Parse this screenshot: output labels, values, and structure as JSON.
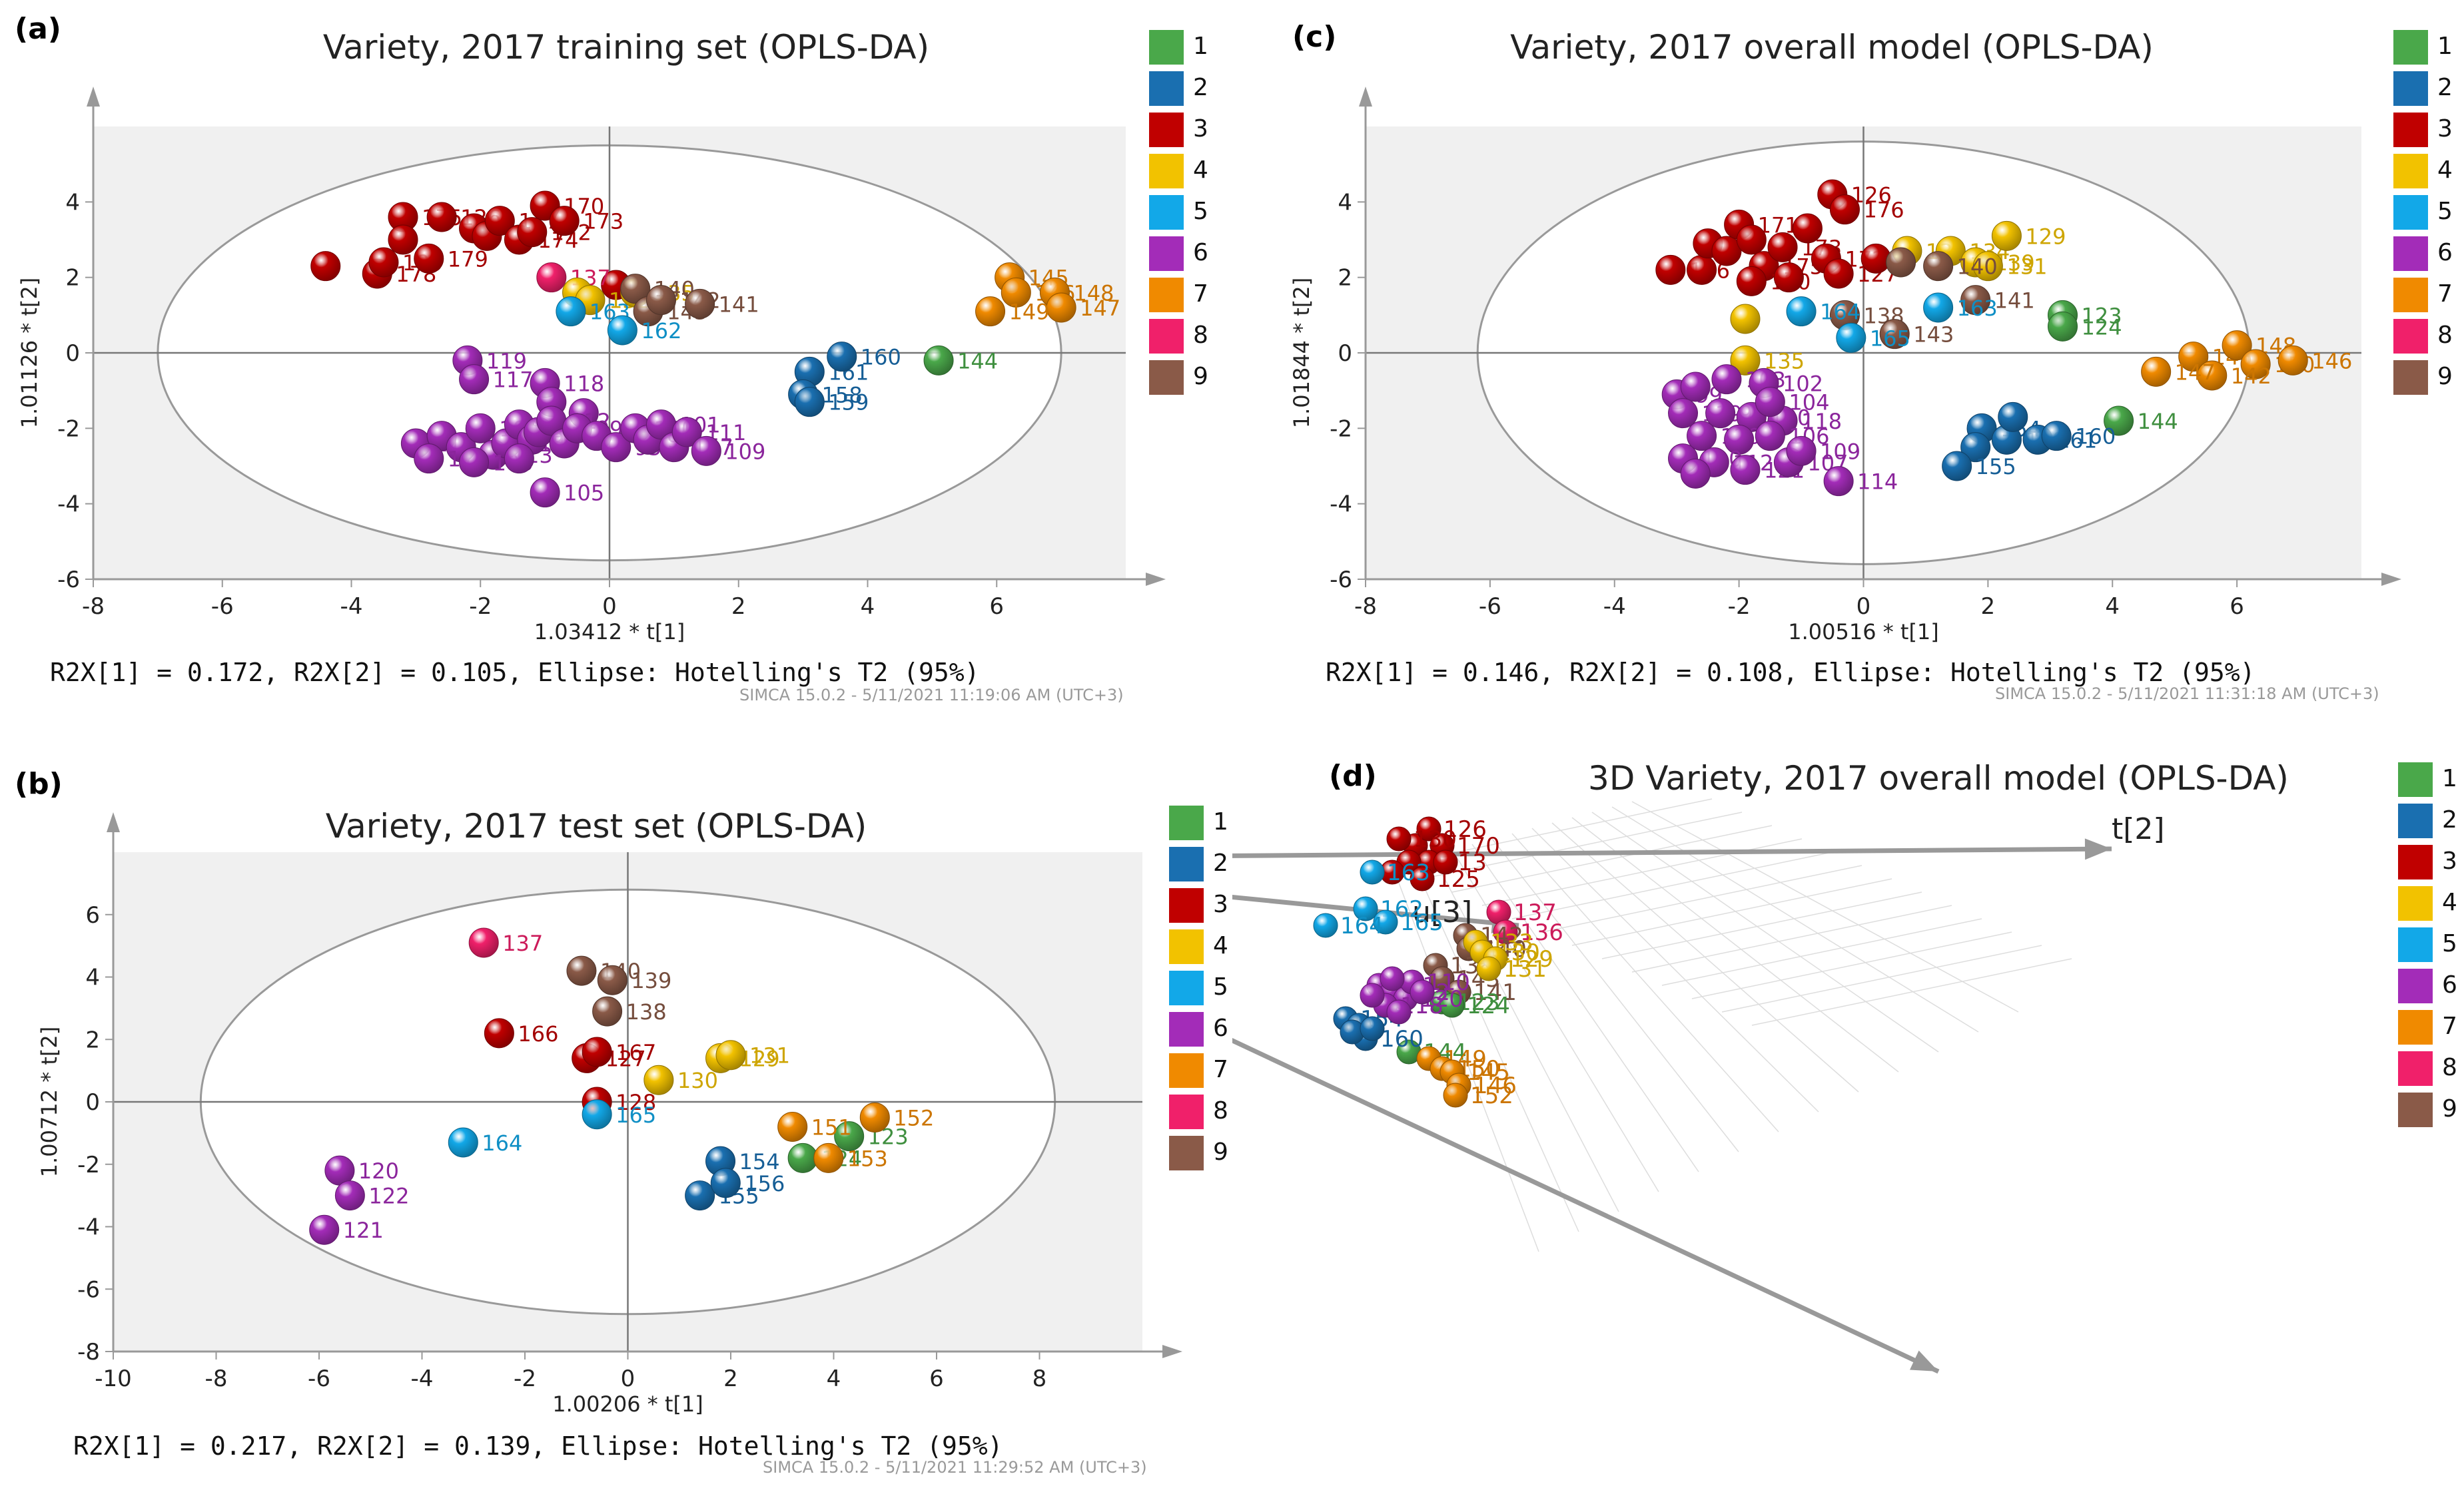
{
  "colors": {
    "1": "#4aa84a",
    "2": "#1a6fb0",
    "3": "#c00000",
    "4": "#f2c200",
    "5": "#12a8e8",
    "6": "#a32cb8",
    "7": "#f08a00",
    "8": "#f0206a",
    "9": "#8a5a48"
  },
  "legend_labels": [
    "1",
    "2",
    "3",
    "4",
    "5",
    "6",
    "7",
    "8",
    "9"
  ],
  "chart_data": [
    {
      "panel": "(a)",
      "type": "scatter",
      "title": "Variety, 2017 training set (OPLS-DA)",
      "xlabel": "1.03412 * t[1]",
      "ylabel": "1.01126 * t[2]",
      "xlim": [
        -8,
        8
      ],
      "ylim": [
        -6,
        6
      ],
      "xticks": [
        -8,
        -6,
        -4,
        -2,
        0,
        2,
        4,
        6
      ],
      "yticks": [
        -6,
        -4,
        -2,
        0,
        2,
        4
      ],
      "ellipse": {
        "rx": 7.0,
        "ry": 5.5
      },
      "stats": "R2X[1] = 0.172, R2X[2] = 0.105, Ellipse: Hotelling's T2 (95%)",
      "footer": "SIMCA 15.0.2 - 5/11/2021 11:19:06 AM (UTC+3)",
      "points": [
        [
          -4.4,
          2.3,
          3,
          ""
        ],
        [
          -3.6,
          2.1,
          3,
          "178"
        ],
        [
          -3.5,
          2.4,
          3,
          "180"
        ],
        [
          -3.2,
          3.6,
          3,
          "175"
        ],
        [
          -3.2,
          3.0,
          3,
          ""
        ],
        [
          -2.8,
          2.5,
          3,
          "179"
        ],
        [
          -2.6,
          3.6,
          3,
          "126"
        ],
        [
          -2.1,
          3.3,
          3,
          ""
        ],
        [
          -1.9,
          3.1,
          3,
          ""
        ],
        [
          -1.7,
          3.5,
          3,
          "177"
        ],
        [
          -1.4,
          3.0,
          3,
          "174"
        ],
        [
          -1.2,
          3.2,
          3,
          "172"
        ],
        [
          -1.0,
          3.9,
          3,
          "170"
        ],
        [
          -0.7,
          3.5,
          3,
          "173"
        ],
        [
          0.1,
          1.8,
          3,
          ""
        ],
        [
          -0.9,
          2.0,
          8,
          "137"
        ],
        [
          -0.5,
          1.6,
          4,
          ""
        ],
        [
          -0.3,
          1.4,
          4,
          "132"
        ],
        [
          0.4,
          1.6,
          4,
          "135"
        ],
        [
          0.4,
          1.7,
          9,
          "140"
        ],
        [
          0.6,
          1.1,
          9,
          "143"
        ],
        [
          0.8,
          1.4,
          9,
          "142"
        ],
        [
          1.4,
          1.3,
          9,
          "141"
        ],
        [
          -0.6,
          1.1,
          5,
          "163"
        ],
        [
          0.2,
          0.6,
          5,
          "162"
        ],
        [
          3.1,
          -0.5,
          2,
          "161"
        ],
        [
          3.6,
          -0.1,
          2,
          "160"
        ],
        [
          3.0,
          -1.1,
          2,
          "158"
        ],
        [
          3.1,
          -1.3,
          2,
          "159"
        ],
        [
          5.1,
          -0.2,
          1,
          "144"
        ],
        [
          6.2,
          2.0,
          7,
          "145"
        ],
        [
          6.3,
          1.6,
          7,
          "146"
        ],
        [
          6.9,
          1.6,
          7,
          "148"
        ],
        [
          7.0,
          1.2,
          7,
          "147"
        ],
        [
          5.9,
          1.1,
          7,
          "149"
        ],
        [
          -2.2,
          -0.2,
          6,
          "119"
        ],
        [
          -2.1,
          -0.7,
          6,
          "117"
        ],
        [
          -1.0,
          -0.8,
          6,
          "118"
        ],
        [
          -0.9,
          -1.3,
          6,
          ""
        ],
        [
          -0.4,
          -1.6,
          6,
          ""
        ],
        [
          -3.0,
          -2.4,
          6,
          "116"
        ],
        [
          -2.6,
          -2.2,
          6,
          ""
        ],
        [
          -2.3,
          -2.5,
          6,
          ""
        ],
        [
          -2.0,
          -2.0,
          6,
          "108"
        ],
        [
          -1.8,
          -2.7,
          6,
          "113"
        ],
        [
          -1.6,
          -2.4,
          6,
          "115"
        ],
        [
          -1.4,
          -1.9,
          6,
          ""
        ],
        [
          -1.2,
          -2.3,
          6,
          "96"
        ],
        [
          -1.1,
          -2.1,
          6,
          ""
        ],
        [
          -0.9,
          -1.8,
          6,
          "112"
        ],
        [
          -0.7,
          -2.4,
          6,
          ""
        ],
        [
          -0.5,
          -2.0,
          6,
          "99"
        ],
        [
          -0.2,
          -2.2,
          6,
          ""
        ],
        [
          0.1,
          -2.5,
          6,
          "95"
        ],
        [
          0.4,
          -2.0,
          6,
          "100"
        ],
        [
          0.6,
          -2.3,
          6,
          "97"
        ],
        [
          0.8,
          -1.9,
          6,
          "101"
        ],
        [
          1.0,
          -2.5,
          6,
          "107"
        ],
        [
          1.2,
          -2.1,
          6,
          "111"
        ],
        [
          1.5,
          -2.6,
          6,
          "109"
        ],
        [
          -2.8,
          -2.8,
          6,
          "110"
        ],
        [
          -2.1,
          -2.9,
          6,
          "103"
        ],
        [
          -1.0,
          -3.7,
          6,
          "105"
        ],
        [
          -1.4,
          -2.8,
          6,
          ""
        ]
      ]
    },
    {
      "panel": "(b)",
      "type": "scatter",
      "title": "Variety, 2017 test set (OPLS-DA)",
      "xlabel": "1.00206 * t[1]",
      "ylabel": "1.00712 * t[2]",
      "xlim": [
        -10,
        10
      ],
      "ylim": [
        -8,
        8
      ],
      "xticks": [
        -10,
        -8,
        -6,
        -4,
        -2,
        0,
        2,
        4,
        6,
        8
      ],
      "yticks": [
        -8,
        -6,
        -4,
        -2,
        0,
        2,
        4,
        6
      ],
      "ellipse": {
        "rx": 8.3,
        "ry": 6.8
      },
      "stats": "R2X[1] = 0.217, R2X[2] = 0.139, Ellipse: Hotelling's T2 (95%)",
      "footer": "SIMCA 15.0.2 - 5/11/2021 11:29:52 AM (UTC+3)",
      "points": [
        [
          -2.8,
          5.1,
          8,
          "137"
        ],
        [
          -0.9,
          4.2,
          9,
          "140"
        ],
        [
          -0.3,
          3.9,
          9,
          "139"
        ],
        [
          -0.4,
          2.9,
          9,
          "138"
        ],
        [
          -2.5,
          2.2,
          3,
          "166"
        ],
        [
          -0.8,
          1.4,
          3,
          "127"
        ],
        [
          -0.6,
          1.6,
          3,
          "167"
        ],
        [
          -0.6,
          0.0,
          3,
          "128"
        ],
        [
          1.8,
          1.4,
          4,
          "129"
        ],
        [
          2.0,
          1.5,
          4,
          "131"
        ],
        [
          0.6,
          0.7,
          4,
          "130"
        ],
        [
          -3.2,
          -1.3,
          5,
          "164"
        ],
        [
          -0.6,
          -0.4,
          5,
          "165"
        ],
        [
          1.8,
          -1.9,
          2,
          "154"
        ],
        [
          1.4,
          -3.0,
          2,
          "155"
        ],
        [
          1.9,
          -2.6,
          2,
          "156"
        ],
        [
          3.4,
          -1.8,
          1,
          "124"
        ],
        [
          4.3,
          -1.1,
          1,
          "123"
        ],
        [
          3.2,
          -0.8,
          7,
          "151"
        ],
        [
          3.9,
          -1.8,
          7,
          "153"
        ],
        [
          4.8,
          -0.5,
          7,
          "152"
        ],
        [
          -5.6,
          -2.2,
          6,
          "120"
        ],
        [
          -5.4,
          -3.0,
          6,
          "122"
        ],
        [
          -5.9,
          -4.1,
          6,
          "121"
        ]
      ]
    },
    {
      "panel": "(c)",
      "type": "scatter",
      "title": "Variety, 2017 overall model (OPLS-DA)",
      "xlabel": "1.00516 * t[1]",
      "ylabel": "1.01844 * t[2]",
      "xlim": [
        -8,
        8
      ],
      "ylim": [
        -6,
        6
      ],
      "xticks": [
        -8,
        -6,
        -4,
        -2,
        0,
        2,
        4,
        6
      ],
      "yticks": [
        -6,
        -4,
        -2,
        0,
        2,
        4
      ],
      "ellipse": {
        "rx": 6.2,
        "ry": 5.6
      },
      "stats": "R2X[1] = 0.146, R2X[2] = 0.108, Ellipse: Hotelling's T2 (95%)",
      "footer": "SIMCA 15.0.2 - 5/11/2021 11:31:18 AM (UTC+3)",
      "points": [
        [
          -3.1,
          2.2,
          3,
          "166"
        ],
        [
          -2.6,
          2.2,
          3,
          ""
        ],
        [
          -2.5,
          2.9,
          3,
          ""
        ],
        [
          -2.2,
          2.7,
          3,
          ""
        ],
        [
          -2.0,
          3.4,
          3,
          "171"
        ],
        [
          -1.8,
          3.0,
          3,
          ""
        ],
        [
          -1.6,
          2.3,
          3,
          "175"
        ],
        [
          -1.3,
          2.8,
          3,
          "173"
        ],
        [
          -1.8,
          1.9,
          3,
          "180"
        ],
        [
          -1.2,
          2.0,
          3,
          ""
        ],
        [
          -0.9,
          3.3,
          3,
          ""
        ],
        [
          -0.5,
          4.2,
          3,
          "126"
        ],
        [
          -0.3,
          3.8,
          3,
          "176"
        ],
        [
          -0.6,
          2.5,
          3,
          "172"
        ],
        [
          -0.4,
          2.1,
          3,
          "127"
        ],
        [
          0.2,
          2.5,
          3,
          ""
        ],
        [
          0.7,
          2.7,
          4,
          "132"
        ],
        [
          1.4,
          2.7,
          4,
          "134"
        ],
        [
          1.8,
          2.4,
          4,
          "139"
        ],
        [
          2.3,
          3.1,
          4,
          "129"
        ],
        [
          2.0,
          2.3,
          4,
          "131"
        ],
        [
          -1.9,
          0.9,
          4,
          ""
        ],
        [
          -1.9,
          -0.2,
          4,
          "135"
        ],
        [
          0.6,
          2.4,
          9,
          ""
        ],
        [
          1.2,
          2.3,
          9,
          "140"
        ],
        [
          -0.3,
          1.0,
          9,
          "138"
        ],
        [
          0.5,
          0.5,
          9,
          "143"
        ],
        [
          1.8,
          1.4,
          9,
          "141"
        ],
        [
          -1.0,
          1.1,
          5,
          "164"
        ],
        [
          -0.2,
          0.4,
          5,
          "165"
        ],
        [
          1.2,
          1.2,
          5,
          "163"
        ],
        [
          3.2,
          1.0,
          1,
          "123"
        ],
        [
          3.2,
          0.7,
          1,
          "124"
        ],
        [
          4.1,
          -1.8,
          1,
          "144"
        ],
        [
          1.9,
          -2.0,
          2,
          "154"
        ],
        [
          2.3,
          -2.3,
          2,
          "158"
        ],
        [
          1.8,
          -2.5,
          2,
          ""
        ],
        [
          1.5,
          -3.0,
          2,
          "155"
        ],
        [
          2.8,
          -2.3,
          2,
          "161"
        ],
        [
          3.1,
          -2.2,
          2,
          "160"
        ],
        [
          2.4,
          -1.7,
          2,
          ""
        ],
        [
          5.3,
          -0.1,
          7,
          "145"
        ],
        [
          6.0,
          0.2,
          7,
          "148"
        ],
        [
          6.3,
          -0.3,
          7,
          "150"
        ],
        [
          6.9,
          -0.2,
          7,
          "146"
        ],
        [
          5.6,
          -0.6,
          7,
          "142"
        ],
        [
          4.7,
          -0.5,
          7,
          "147"
        ],
        [
          -3.0,
          -1.1,
          6,
          "99"
        ],
        [
          -2.7,
          -0.9,
          6,
          ""
        ],
        [
          -2.2,
          -0.7,
          6,
          "103"
        ],
        [
          -1.6,
          -0.8,
          6,
          "102"
        ],
        [
          -2.9,
          -1.6,
          6,
          "119"
        ],
        [
          -2.3,
          -1.6,
          6,
          "97"
        ],
        [
          -1.8,
          -1.7,
          6,
          "100"
        ],
        [
          -1.3,
          -1.8,
          6,
          "118"
        ],
        [
          -2.6,
          -2.2,
          6,
          "120"
        ],
        [
          -2.0,
          -2.3,
          6,
          ""
        ],
        [
          -1.5,
          -2.2,
          6,
          "106"
        ],
        [
          -2.9,
          -2.8,
          6,
          "110"
        ],
        [
          -2.4,
          -2.9,
          6,
          "112"
        ],
        [
          -1.9,
          -3.1,
          6,
          "121"
        ],
        [
          -1.2,
          -2.9,
          6,
          "107"
        ],
        [
          -0.4,
          -3.4,
          6,
          "114"
        ],
        [
          -2.7,
          -3.2,
          6,
          ""
        ],
        [
          -1.5,
          -1.3,
          6,
          "104"
        ],
        [
          -1.0,
          -2.6,
          6,
          "109"
        ]
      ]
    },
    {
      "panel": "(d)",
      "type": "scatter",
      "title": "3D Variety, 2017 overall model (OPLS-DA)",
      "axes3d": [
        "u[3]",
        "t[2]"
      ],
      "points": [
        [
          1175,
          1080,
          3,
          ""
        ],
        [
          1195,
          1055,
          3,
          "126"
        ],
        [
          1215,
          1080,
          3,
          "170"
        ],
        [
          1150,
          1070,
          3,
          "130"
        ],
        [
          1195,
          1105,
          3,
          "113"
        ],
        [
          1165,
          1105,
          3,
          ""
        ],
        [
          1185,
          1130,
          3,
          "125"
        ],
        [
          1140,
          1120,
          3,
          ""
        ],
        [
          1220,
          1105,
          3,
          ""
        ],
        [
          1110,
          1120,
          5,
          "163"
        ],
        [
          1100,
          1175,
          5,
          "162"
        ],
        [
          1130,
          1195,
          5,
          "165"
        ],
        [
          1040,
          1200,
          5,
          "164"
        ],
        [
          1300,
          1180,
          8,
          "137"
        ],
        [
          1310,
          1210,
          8,
          "136"
        ],
        [
          1250,
          1215,
          9,
          "142"
        ],
        [
          1255,
          1235,
          9,
          "140"
        ],
        [
          1205,
          1260,
          9,
          "138"
        ],
        [
          1215,
          1280,
          9,
          "143"
        ],
        [
          1240,
          1300,
          9,
          "141"
        ],
        [
          1265,
          1225,
          4,
          "133"
        ],
        [
          1275,
          1240,
          4,
          "130"
        ],
        [
          1295,
          1250,
          4,
          "129"
        ],
        [
          1285,
          1265,
          4,
          "131"
        ],
        [
          1215,
          1315,
          1,
          "123"
        ],
        [
          1230,
          1320,
          1,
          "124"
        ],
        [
          1165,
          1390,
          1,
          "144"
        ],
        [
          1070,
          1340,
          2,
          "154"
        ],
        [
          1090,
          1350,
          2,
          ""
        ],
        [
          1100,
          1370,
          2,
          "160"
        ],
        [
          1080,
          1360,
          2,
          ""
        ],
        [
          1110,
          1355,
          2,
          ""
        ],
        [
          1195,
          1400,
          7,
          "149"
        ],
        [
          1215,
          1415,
          7,
          "150"
        ],
        [
          1230,
          1420,
          7,
          "145"
        ],
        [
          1240,
          1440,
          7,
          "146"
        ],
        [
          1235,
          1455,
          7,
          "152"
        ],
        [
          1120,
          1290,
          6,
          "101"
        ],
        [
          1140,
          1300,
          6,
          "112"
        ],
        [
          1160,
          1310,
          6,
          "120"
        ],
        [
          1130,
          1320,
          6,
          "118"
        ],
        [
          1150,
          1330,
          6,
          ""
        ],
        [
          1170,
          1285,
          6,
          "110"
        ],
        [
          1110,
          1305,
          6,
          ""
        ],
        [
          1185,
          1300,
          6,
          ""
        ],
        [
          1140,
          1280,
          6,
          ""
        ]
      ]
    }
  ]
}
